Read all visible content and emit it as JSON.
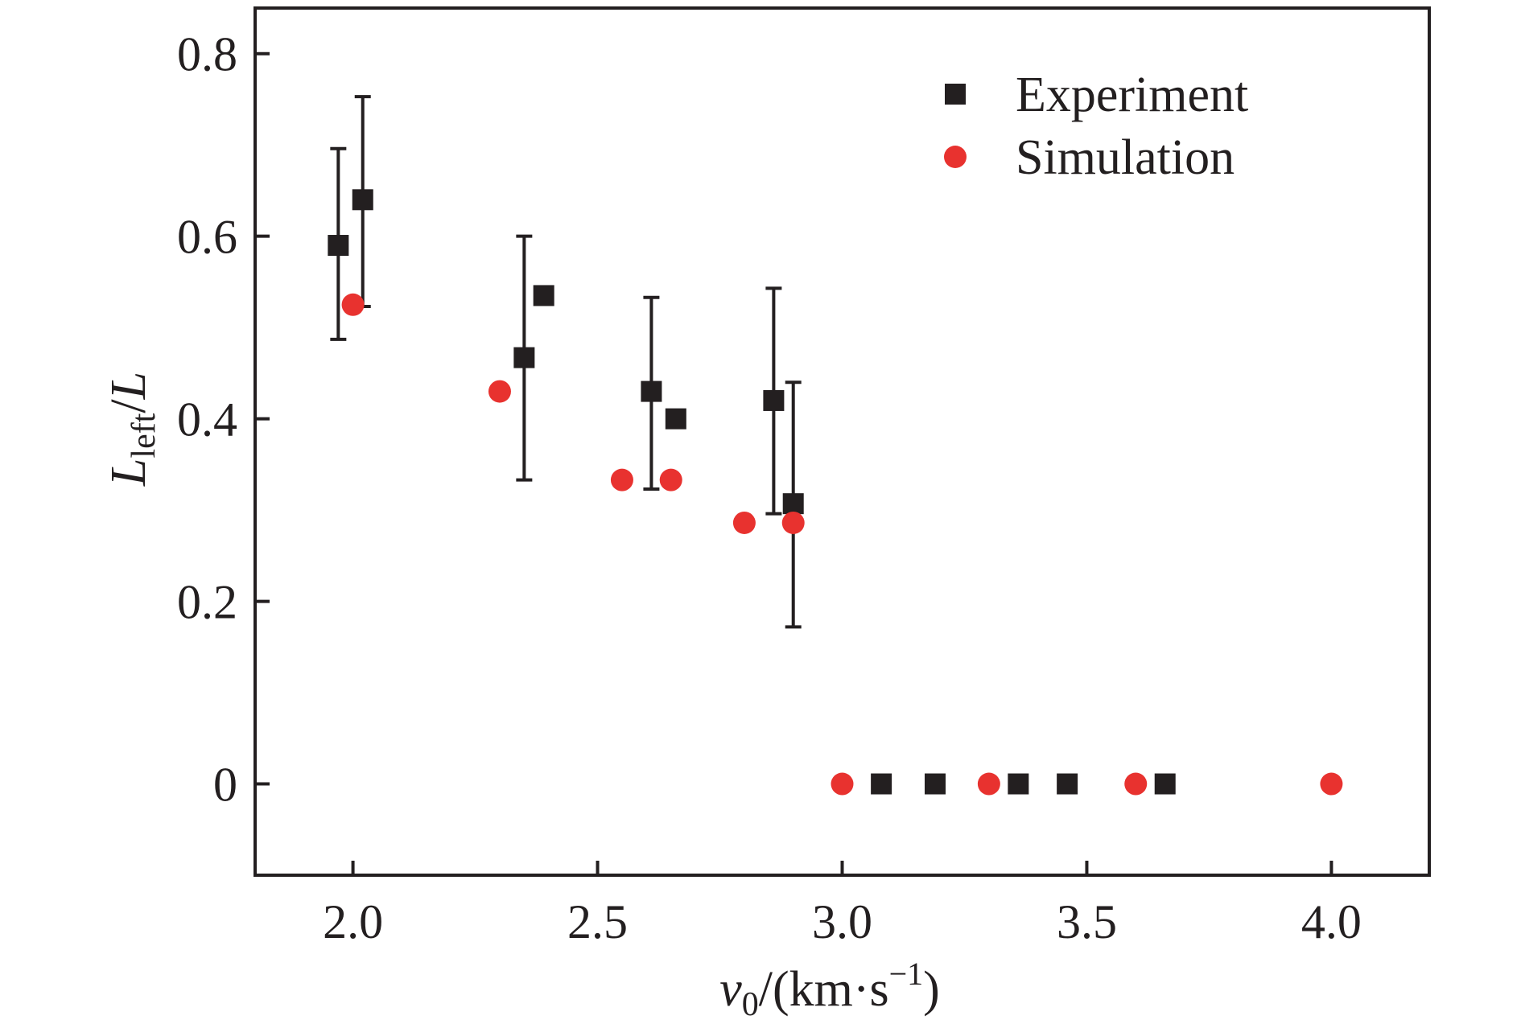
{
  "chart_data": {
    "type": "scatter",
    "title": "",
    "xlabel": {
      "var": "v",
      "sub": "0",
      "unit_prefix": "/(km·s",
      "unit_sup": "−1",
      "unit_suffix": ")"
    },
    "ylabel": {
      "var": "L",
      "sub": "left",
      "slash": "/",
      "var2": "L"
    },
    "xlim": [
      1.8,
      4.2
    ],
    "ylim": [
      -0.1,
      0.85
    ],
    "xticks": [
      2.0,
      2.5,
      3.0,
      3.5,
      4.0
    ],
    "xtick_labels": [
      "2.0",
      "2.5",
      "3.0",
      "3.5",
      "4.0"
    ],
    "yticks": [
      0,
      0.2,
      0.4,
      0.6,
      0.8
    ],
    "ytick_labels": [
      "0",
      "0.2",
      "0.4",
      "0.6",
      "0.8"
    ],
    "grid": false,
    "legend_position": "top-right",
    "series": [
      {
        "name": "Experiment",
        "marker": "square",
        "color": "#231f20",
        "x": [
          1.97,
          2.02,
          2.35,
          2.39,
          2.61,
          2.66,
          2.86,
          2.9,
          3.08,
          3.19,
          3.36,
          3.46,
          3.66
        ],
        "y": [
          0.59,
          0.64,
          0.467,
          0.535,
          0.43,
          0.4,
          0.42,
          0.307,
          0,
          0,
          0,
          0,
          0
        ],
        "error_low": [
          0.487,
          0.523,
          0.333,
          null,
          0.323,
          null,
          0.296,
          0.172,
          null,
          null,
          null,
          null,
          null
        ],
        "error_high": [
          0.696,
          0.753,
          0.6,
          null,
          0.533,
          null,
          0.543,
          0.44,
          null,
          null,
          null,
          null,
          null
        ]
      },
      {
        "name": "Simulation",
        "marker": "circle",
        "color": "#e8322f",
        "x": [
          2.0,
          2.3,
          2.55,
          2.65,
          2.8,
          2.9,
          3.0,
          3.3,
          3.6,
          4.0
        ],
        "y": [
          0.525,
          0.43,
          0.333,
          0.333,
          0.286,
          0.286,
          0,
          0,
          0,
          0
        ]
      }
    ]
  }
}
